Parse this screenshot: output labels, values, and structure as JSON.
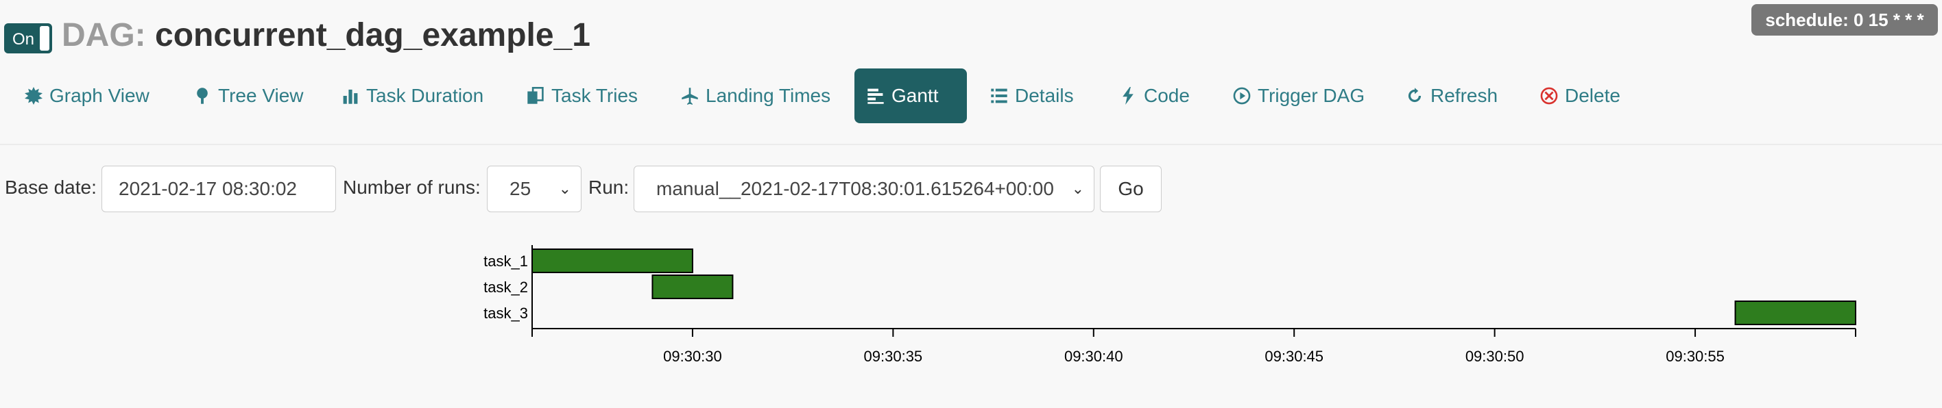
{
  "header": {
    "toggle_label": "On",
    "title_prefix": "DAG:",
    "dag_name": "concurrent_dag_example_1",
    "schedule_badge": "schedule: 0 15 * * *"
  },
  "nav": {
    "items": [
      {
        "label": "Graph View",
        "icon": "graph-icon"
      },
      {
        "label": "Tree View",
        "icon": "tree-icon"
      },
      {
        "label": "Task Duration",
        "icon": "bar-chart-icon"
      },
      {
        "label": "Task Tries",
        "icon": "duplicate-icon"
      },
      {
        "label": "Landing Times",
        "icon": "plane-icon"
      },
      {
        "label": "Gantt",
        "icon": "gantt-icon",
        "active": true
      },
      {
        "label": "Details",
        "icon": "list-icon"
      },
      {
        "label": "Code",
        "icon": "flash-icon"
      },
      {
        "label": "Trigger DAG",
        "icon": "play-circle-icon"
      },
      {
        "label": "Refresh",
        "icon": "refresh-icon"
      },
      {
        "label": "Delete",
        "icon": "remove-circle-icon"
      }
    ],
    "accent_color": "#2f7c86",
    "active_bg": "#1f5f63"
  },
  "form": {
    "base_date_label": "Base date:",
    "base_date_value": "2021-02-17 08:30:02",
    "num_runs_label": "Number of runs:",
    "num_runs_value": "25",
    "run_label": "Run:",
    "run_value": "manual__2021-02-17T08:30:01.615264+00:00",
    "go_label": "Go"
  },
  "chart_data": {
    "type": "gantt",
    "tasks": [
      "task_1",
      "task_2",
      "task_3"
    ],
    "bars": [
      {
        "task": "task_1",
        "start": "09:30:26",
        "end": "09:30:30"
      },
      {
        "task": "task_2",
        "start": "09:30:29",
        "end": "09:30:31"
      },
      {
        "task": "task_3",
        "start": "09:30:56",
        "end": "09:30:59"
      }
    ],
    "x_ticks": [
      "09:30:30",
      "09:30:35",
      "09:30:40",
      "09:30:45",
      "09:30:50",
      "09:30:55"
    ],
    "xlim": [
      "09:30:26",
      "09:30:59"
    ],
    "bar_color": "#2e7d1e"
  }
}
